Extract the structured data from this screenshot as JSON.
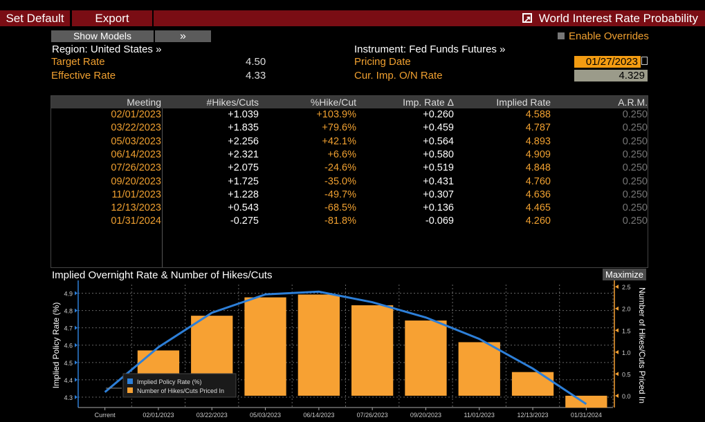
{
  "toolbar": {
    "set_default": "Set Default",
    "export": "Export",
    "title": "World Interest Rate Probability"
  },
  "controls": {
    "show_models": "Show Models",
    "expand": "»",
    "enable_overrides": "Enable Overrides"
  },
  "info": {
    "region_label": "Region: United States »",
    "target_rate_label": "Target Rate",
    "target_rate": "4.50",
    "effective_rate_label": "Effective Rate",
    "effective_rate": "4.33",
    "instrument_label": "Instrument: Fed Funds Futures »",
    "pricing_date_label": "Pricing Date",
    "pricing_date": "01/27/2023",
    "cur_imp_label": "Cur. Imp. O/N Rate",
    "cur_imp": "4.329"
  },
  "table": {
    "headers": [
      "Meeting",
      "#Hikes/Cuts",
      "%Hike/Cut",
      "Imp. Rate Δ",
      "Implied Rate",
      "A.R.M."
    ],
    "rows": [
      [
        "02/01/2023",
        "+1.039",
        "+103.9%",
        "+0.260",
        "4.588",
        "0.250"
      ],
      [
        "03/22/2023",
        "+1.835",
        "+79.6%",
        "+0.459",
        "4.787",
        "0.250"
      ],
      [
        "05/03/2023",
        "+2.256",
        "+42.1%",
        "+0.564",
        "4.893",
        "0.250"
      ],
      [
        "06/14/2023",
        "+2.321",
        "+6.6%",
        "+0.580",
        "4.909",
        "0.250"
      ],
      [
        "07/26/2023",
        "+2.075",
        "-24.6%",
        "+0.519",
        "4.848",
        "0.250"
      ],
      [
        "09/20/2023",
        "+1.725",
        "-35.0%",
        "+0.431",
        "4.760",
        "0.250"
      ],
      [
        "11/01/2023",
        "+1.228",
        "-49.7%",
        "+0.307",
        "4.636",
        "0.250"
      ],
      [
        "12/13/2023",
        "+0.543",
        "-68.5%",
        "+0.136",
        "4.465",
        "0.250"
      ],
      [
        "01/31/2024",
        "-0.275",
        "-81.8%",
        "-0.069",
        "4.260",
        "0.250"
      ]
    ]
  },
  "chart_panel": {
    "title": "Implied Overnight Rate & Number of Hikes/Cuts",
    "maximize": "Maximize"
  },
  "chart_data": {
    "type": "bar",
    "categories": [
      "Current",
      "02/01/2023",
      "03/22/2023",
      "05/03/2023",
      "06/14/2023",
      "07/26/2023",
      "09/20/2023",
      "11/01/2023",
      "12/13/2023",
      "01/31/2024"
    ],
    "series": [
      {
        "name": "Implied Policy Rate (%)",
        "type": "line",
        "axis": "left",
        "color": "#2d7fd8",
        "values": [
          4.329,
          4.588,
          4.787,
          4.893,
          4.909,
          4.848,
          4.76,
          4.636,
          4.465,
          4.26
        ]
      },
      {
        "name": "Number of Hikes/Cuts Priced In",
        "type": "bar",
        "axis": "right",
        "color": "#f7a133",
        "values": [
          null,
          1.039,
          1.835,
          2.256,
          2.321,
          2.075,
          1.725,
          1.228,
          0.543,
          -0.275
        ]
      }
    ],
    "ylabel": "Implied Policy Rate (%)",
    "y2label": "Number of Hikes/Cuts Priced In",
    "ylim": [
      4.24,
      4.95
    ],
    "y2lim": [
      -0.27,
      2.55
    ],
    "yticks": [
      "4.9",
      "4.8",
      "4.7",
      "4.6",
      "4.5",
      "4.4",
      "4.3"
    ],
    "y2ticks": [
      "2.5",
      "2.0",
      "1.5",
      "1.0",
      "0.5",
      "0.0"
    ],
    "grid": true,
    "legend": "bottom-left"
  }
}
